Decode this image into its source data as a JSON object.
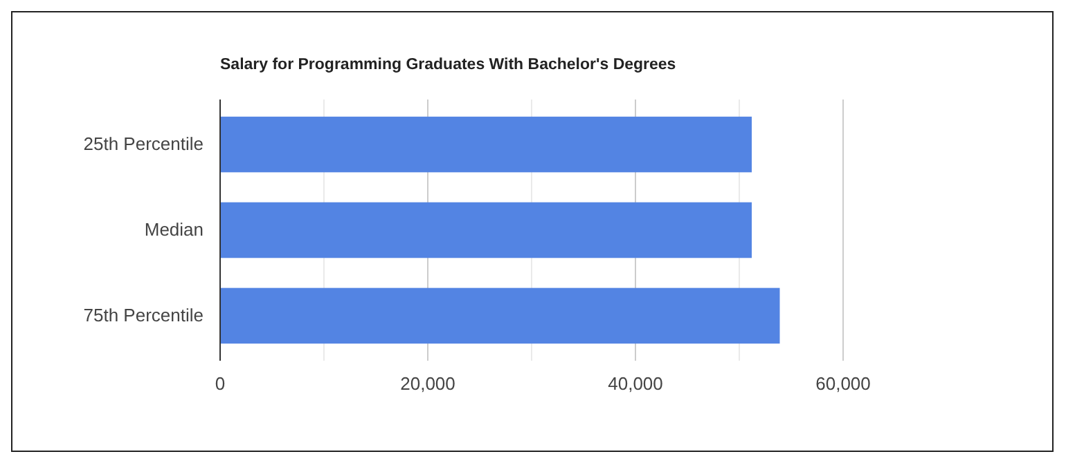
{
  "chart_data": {
    "type": "bar",
    "orientation": "horizontal",
    "title": "Salary for Programming Graduates With Bachelor's Degrees",
    "categories": [
      "25th Percentile",
      "Median",
      "75th Percentile"
    ],
    "values": [
      51200,
      51200,
      53900
    ],
    "color": "#5384e3",
    "xlim": [
      0,
      80000
    ],
    "xticks": [
      0,
      {
        "value": 10000,
        "label": null
      },
      {
        "value": 20000,
        "label": "20,000"
      },
      {
        "value": 30000,
        "label": null
      },
      {
        "value": 40000,
        "label": "40,000"
      },
      {
        "value": 50000,
        "label": null
      },
      {
        "value": 60000,
        "label": "60,000"
      }
    ],
    "grid": "x"
  }
}
